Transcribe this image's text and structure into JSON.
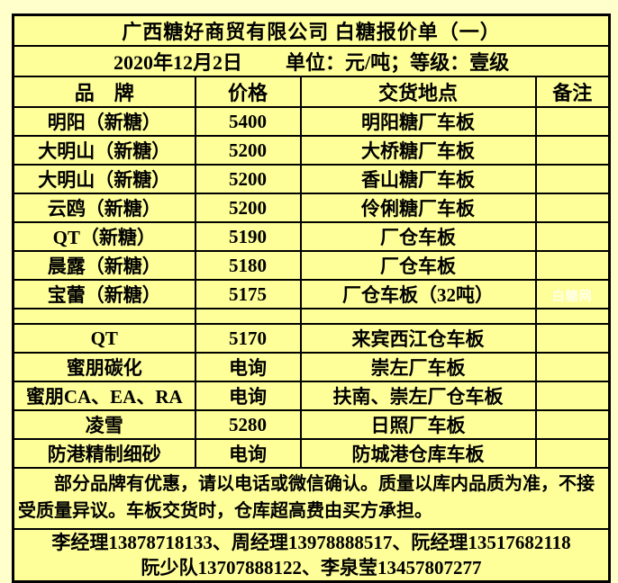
{
  "page": {
    "background": "#FFFFCC",
    "cell_background": "#FFFF99",
    "border_color": "#000000",
    "text_color": "#000000",
    "watermark_color": "#FFFFFF"
  },
  "header": {
    "title": "广西糖好商贸有限公司 白糖报价单（一）",
    "date": "2020年12月2日",
    "unit_grade": "单位：元/吨；等级：壹级"
  },
  "columns": [
    "品　牌",
    "价格",
    "交货地点",
    "备注"
  ],
  "rows": [
    {
      "brand": "明阳（新糖）",
      "price": "5400",
      "location": "明阳糖厂车板",
      "note": ""
    },
    {
      "brand": "大明山（新糖）",
      "price": "5200",
      "location": "大桥糖厂车板",
      "note": ""
    },
    {
      "brand": "大明山（新糖）",
      "price": "5200",
      "location": "香山糖厂车板",
      "note": ""
    },
    {
      "brand": "云鸥（新糖）",
      "price": "5200",
      "location": "伶俐糖厂车板",
      "note": ""
    },
    {
      "brand": "QT（新糖）",
      "price": "5190",
      "location": "厂仓车板",
      "note": ""
    },
    {
      "brand": "晨露（新糖）",
      "price": "5180",
      "location": "厂仓车板",
      "note": ""
    },
    {
      "brand": "宝蕾（新糖）",
      "price": "5175",
      "location": "厂仓车板（32吨）",
      "note": "",
      "watermark": "白糖网"
    },
    {
      "spacer": true,
      "brand": "",
      "price": "",
      "location": "",
      "note": ""
    },
    {
      "brand": "QT",
      "price": "5170",
      "location": "来宾西江仓车板",
      "note": ""
    },
    {
      "brand": "蜜朋碳化",
      "price": "电询",
      "location": "崇左厂车板",
      "note": ""
    },
    {
      "brand": "蜜朋CA、EA、RA",
      "price": "电询",
      "location": "扶南、崇左厂仓车板",
      "note": ""
    },
    {
      "brand": "凌雪",
      "price": "5280",
      "location": "日照厂车板",
      "note": ""
    },
    {
      "brand": "防港精制细砂",
      "price": "电询",
      "location": "防城港仓库车板",
      "note": ""
    }
  ],
  "footer": {
    "notice": "部分品牌有优惠，请以电话或微信确认。质量以库内品质为准，不接受质量异议。车板交货时，仓库超高费由买方承担。",
    "contacts_line1": "李经理13878718133、周经理13978888517、阮经理13517682118",
    "contacts_line2": "阮少队13707888122、李泉莹13457807277"
  }
}
